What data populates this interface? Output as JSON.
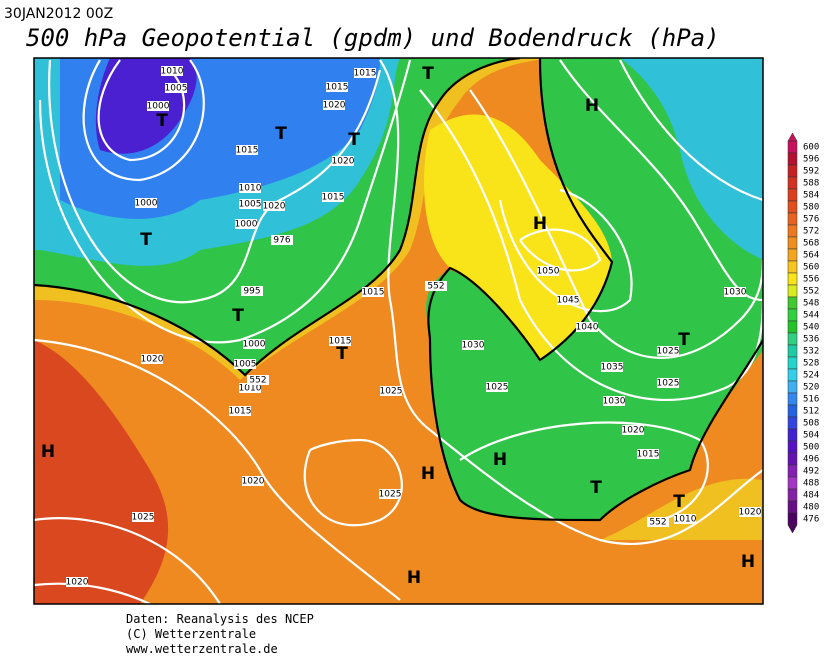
{
  "header": {
    "date": "30JAN2012 00Z",
    "title": "500 hPa Geopotential (gpdm) und Bodendruck (hPa)"
  },
  "footer": [
    "Daten: Reanalysis des NCEP",
    "(C) Wetterzentrale",
    "www.wetterzentrale.de"
  ],
  "colorbar": {
    "labels": [
      "600",
      "596",
      "592",
      "588",
      "584",
      "580",
      "576",
      "572",
      "568",
      "564",
      "560",
      "556",
      "552",
      "548",
      "544",
      "540",
      "536",
      "532",
      "528",
      "524",
      "520",
      "516",
      "512",
      "508",
      "504",
      "500",
      "496",
      "492",
      "488",
      "484",
      "480",
      "476"
    ],
    "colors": [
      "#c8105c",
      "#b41030",
      "#c42224",
      "#d23222",
      "#da4020",
      "#e25020",
      "#e86220",
      "#ee7820",
      "#f08e20",
      "#f4a620",
      "#f8c420",
      "#f8e418",
      "#d8ec20",
      "#40c830",
      "#30d040",
      "#22c428",
      "#30d080",
      "#20caa4",
      "#22d4ca",
      "#34d0ea",
      "#40b0f2",
      "#3486f0",
      "#2462e2",
      "#3444e0",
      "#4222d0",
      "#5410c2",
      "#6410b2",
      "#8420b2",
      "#a434c4",
      "#8422a4",
      "#641084",
      "#4c0060"
    ]
  },
  "map": {
    "isobar_labels": [
      "1010",
      "1005",
      "1000",
      "1015",
      "1015",
      "1020",
      "1015",
      "1020",
      "1010",
      "1005",
      "1020",
      "1000",
      "1015",
      "1000",
      "995",
      "1000",
      "1005",
      "1010",
      "1015",
      "1020",
      "1015",
      "1015",
      "1025",
      "1020",
      "1025",
      "1025",
      "1020",
      "1030",
      "1025",
      "1050",
      "1045",
      "1040",
      "1035",
      "1030",
      "1025",
      "1025",
      "1020",
      "1015",
      "1030",
      "1010",
      "1020",
      "552",
      "552",
      "552",
      "976"
    ],
    "pressure_centers": [
      "T",
      "T",
      "T",
      "T",
      "T",
      "T",
      "T",
      "T",
      "T",
      "T",
      "H",
      "H",
      "H",
      "H",
      "H",
      "H",
      "H"
    ]
  }
}
